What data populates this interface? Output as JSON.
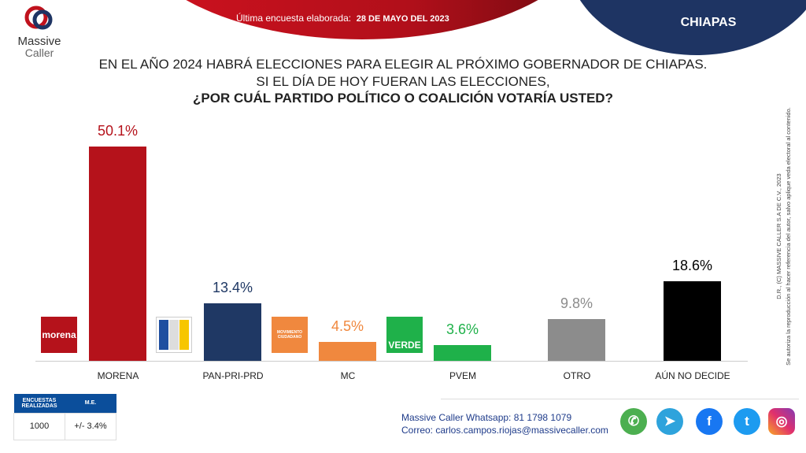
{
  "header": {
    "survey_label": "Última encuesta elaborada:",
    "survey_date": "28 DE MAYO DEL 2023",
    "state": "CHIAPAS",
    "brand_line1": "Massive",
    "brand_line2": "Caller"
  },
  "question": {
    "line1": "EN EL AÑO 2024 HABRÁ ELECCIONES PARA ELEGIR AL PRÓXIMO GOBERNADOR DE CHIAPAS.",
    "line2": "SI EL DÍA DE HOY FUERAN LAS ELECCIONES,",
    "line3": "¿POR CUÁL PARTIDO POLÍTICO O COALICIÓN VOTARÍA USTED?"
  },
  "chart_data": {
    "type": "bar",
    "categories": [
      "MORENA",
      "PAN-PRI-PRD",
      "MC",
      "PVEM",
      "OTRO",
      "AÚN NO DECIDE"
    ],
    "values": [
      50.1,
      13.4,
      4.5,
      3.6,
      9.8,
      18.6
    ],
    "labels": [
      "50.1%",
      "13.4%",
      "4.5%",
      "3.6%",
      "9.8%",
      "18.6%"
    ],
    "colors": [
      "#b5121b",
      "#1f3864",
      "#f0883e",
      "#1fb14a",
      "#8c8c8c",
      "#000000"
    ],
    "label_colors": [
      "#b5121b",
      "#1f3864",
      "#f0883e",
      "#1fb14a",
      "#8c8c8c",
      "#000000"
    ],
    "ylim": [
      0,
      50.1
    ],
    "grid": false,
    "party_logos": [
      "morena",
      "PAN PRI PRD",
      "MOVIMIENTO CIUDADANO",
      "VERDE"
    ]
  },
  "stats": {
    "h1": "ENCUESTAS REALIZADAS",
    "h2": "M.E.",
    "v1": "1000",
    "v2": "+/- 3.4%"
  },
  "contact": {
    "whatsapp": "Massive Caller Whatsapp: 81 1798 1079",
    "email": "Correo: carlos.campos.riojas@massivecaller.com"
  },
  "copyright": {
    "line1": "D.R., (C) MASSIVE CALLER S.A DE C.V., 2023",
    "line2": "Se autoriza la reproducción al hacer referencia del autor, salvo aplique veda electoral al contenido."
  },
  "social": [
    "whatsapp",
    "telegram",
    "facebook",
    "twitter",
    "instagram"
  ]
}
